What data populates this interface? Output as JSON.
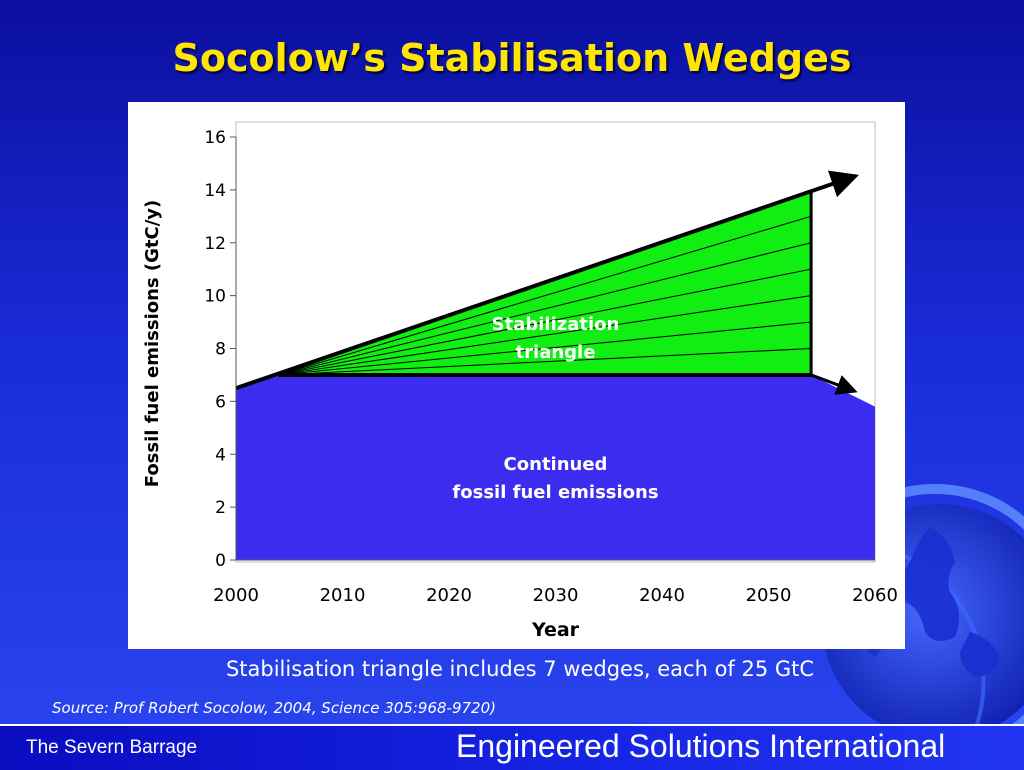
{
  "slide": {
    "title": "Socolow’s Stabilisation Wedges",
    "caption": "Stabilisation triangle includes 7 wedges, each of 25 GtC",
    "source": "Source: Prof Robert Socolow, 2004, Science 305:968-9720)",
    "footer_left": "The Severn Barrage",
    "footer_right": "Engineered Solutions International",
    "colors": {
      "title": "#ffe600",
      "background": "#1a2bd8",
      "triangle_fill": "#11ee11",
      "continued_fill": "#3b2cf0"
    },
    "icons": [
      "globe-icon"
    ]
  },
  "chart_data": {
    "type": "area",
    "title": "",
    "xlabel": "Year",
    "ylabel": "Fossil fuel emissions (GtC/y)",
    "xlim": [
      2000,
      2060
    ],
    "ylim": [
      0,
      16
    ],
    "x_ticks": [
      "2000",
      "2010",
      "2020",
      "2030",
      "2040",
      "2050",
      "2060"
    ],
    "y_ticks": [
      "0",
      "2",
      "4",
      "6",
      "8",
      "10",
      "12",
      "14",
      "16"
    ],
    "grid": false,
    "series": [
      {
        "label": "Continued\nfossil fuel emissions",
        "label_lines": [
          "Continued",
          "fossil fuel emissions"
        ],
        "label_position": [
          2030,
          3.4
        ],
        "x": [
          2000,
          2004,
          2054,
          2060
        ],
        "y": [
          6.5,
          7.0,
          7.0,
          5.8
        ]
      },
      {
        "label": "Stabilization\ntriangle",
        "label_lines": [
          "Stabilization",
          "triangle"
        ],
        "label_position": [
          2030,
          8.7
        ],
        "x": [
          2004,
          2054,
          2054
        ],
        "y": [
          7.0,
          14.0,
          7.0
        ]
      }
    ],
    "wedges": 7,
    "business_as_usual_line": {
      "x": [
        2000,
        2058
      ],
      "y": [
        6.5,
        14.5
      ]
    },
    "flat_path_arrow": {
      "x": [
        2054,
        2058
      ],
      "y": [
        7.0,
        6.4
      ]
    }
  }
}
